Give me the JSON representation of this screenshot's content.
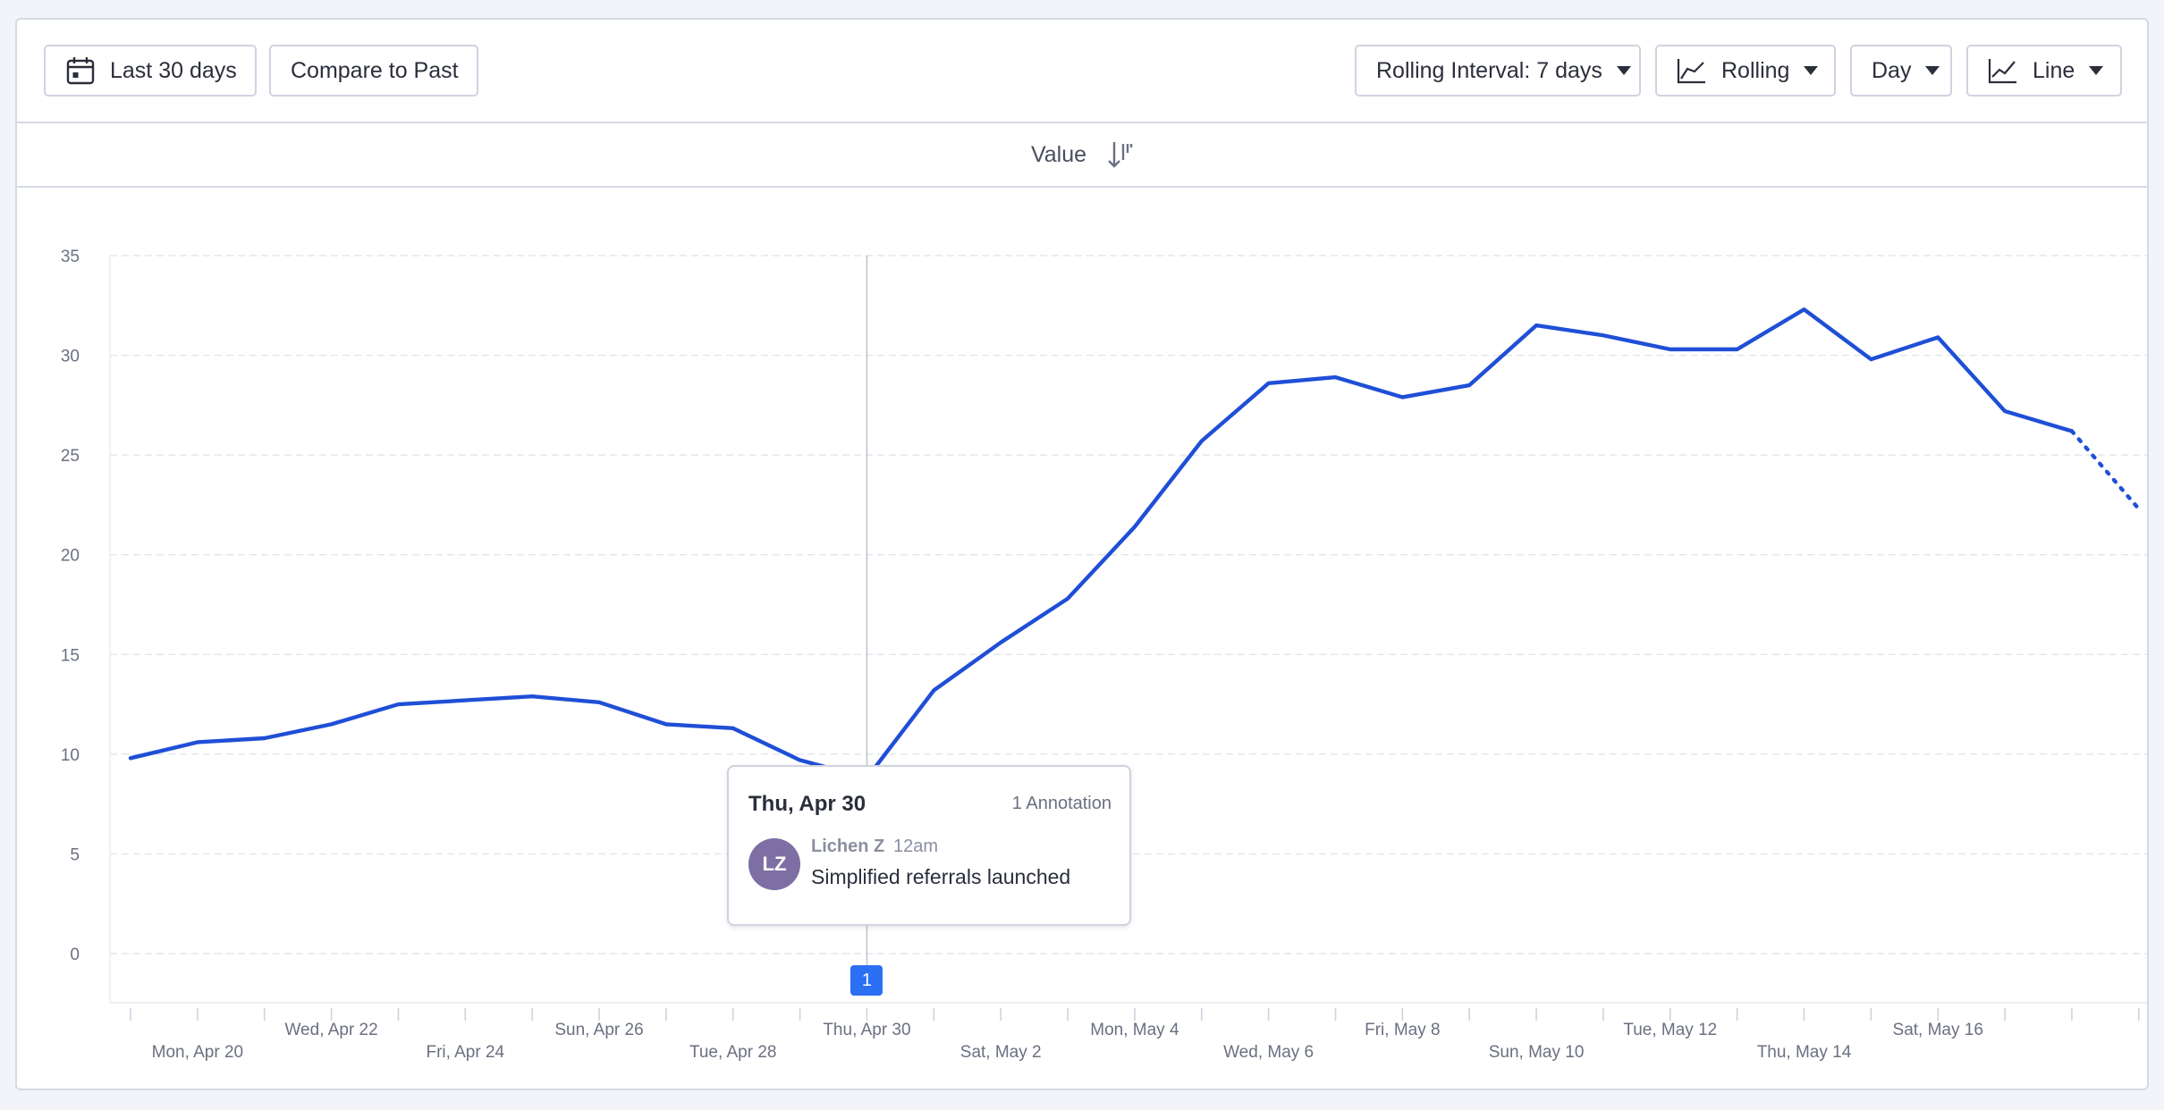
{
  "toolbar": {
    "date_range": "Last 30 days",
    "compare": "Compare to Past",
    "rolling_interval": "Rolling Interval: 7 days",
    "analysis": "Rolling",
    "unit": "Day",
    "chart_type": "Line"
  },
  "subheader": {
    "label": "Value"
  },
  "tooltip": {
    "date": "Thu, Apr 30",
    "count": "1 Annotation",
    "avatar": "LZ",
    "author": "Lichen Z",
    "time": "12am",
    "text": "Simplified referrals launched"
  },
  "annotation_marker": "1",
  "icons": {
    "date_range": "calendar-icon",
    "analysis": "line-chart-icon",
    "chart_type": "trend-line-icon",
    "sort": "sort-descending-icon"
  },
  "colors": {
    "line": "#1f4fd6",
    "marker": "#2b6ff2",
    "avatar": "#7d6fa3"
  },
  "chart_data": {
    "type": "line",
    "x": [
      "Apr 19",
      "Apr 20",
      "Apr 21",
      "Apr 22",
      "Apr 23",
      "Apr 24",
      "Apr 25",
      "Apr 26",
      "Apr 27",
      "Apr 28",
      "Apr 29",
      "Apr 30",
      "May 1",
      "May 2",
      "May 3",
      "May 4",
      "May 5",
      "May 6",
      "May 7",
      "May 8",
      "May 9",
      "May 10",
      "May 11",
      "May 12",
      "May 13",
      "May 14",
      "May 15",
      "May 16",
      "May 17",
      "May 18"
    ],
    "series": [
      {
        "values": [
          9.8,
          10.6,
          10.8,
          11.5,
          12.5,
          12.7,
          12.9,
          12.6,
          11.5,
          11.3,
          9.7,
          8.8,
          13.2,
          15.6,
          17.8,
          21.4,
          25.7,
          28.6,
          28.9,
          27.9,
          28.5,
          31.5,
          31.0,
          30.3,
          30.3,
          32.3,
          29.8,
          30.9,
          27.2,
          26.2
        ],
        "partial_value": 22.3
      }
    ],
    "ylim": [
      0,
      35
    ],
    "yticks": [
      0,
      5,
      10,
      15,
      20,
      25,
      30,
      35
    ],
    "xticks": [
      {
        "label": "Mon, Apr 20",
        "i": 1
      },
      {
        "label": "Wed, Apr 22",
        "i": 3
      },
      {
        "label": "Fri, Apr 24",
        "i": 5
      },
      {
        "label": "Sun, Apr 26",
        "i": 7
      },
      {
        "label": "Tue, Apr 28",
        "i": 9
      },
      {
        "label": "Thu, Apr 30",
        "i": 11
      },
      {
        "label": "Sat, May 2",
        "i": 13
      },
      {
        "label": "Mon, May 4",
        "i": 15
      },
      {
        "label": "Wed, May 6",
        "i": 17
      },
      {
        "label": "Fri, May 8",
        "i": 19
      },
      {
        "label": "Sun, May 10",
        "i": 21
      },
      {
        "label": "Tue, May 12",
        "i": 23
      },
      {
        "label": "Thu, May 14",
        "i": 25
      },
      {
        "label": "Sat, May 16",
        "i": 27
      }
    ],
    "annotation_index": 11,
    "grid": true
  }
}
